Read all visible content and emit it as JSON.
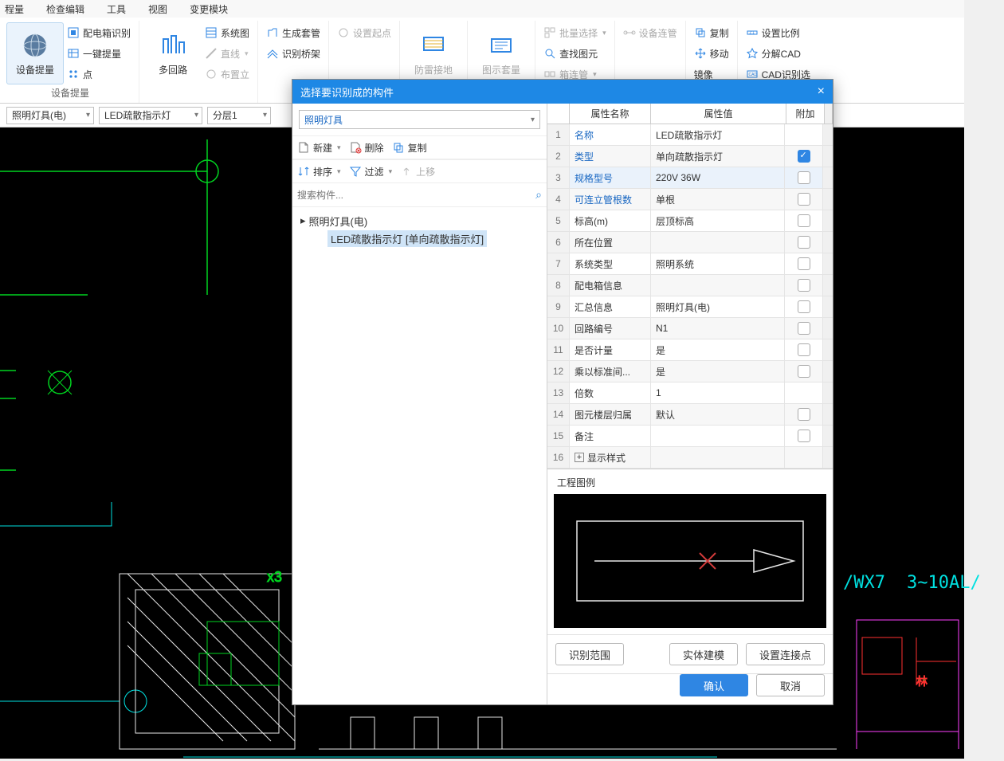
{
  "menu": [
    "程量",
    "检查编辑",
    "工具",
    "视图",
    "变更模块"
  ],
  "ribbon": {
    "group1": {
      "big": "设备提量",
      "items": [
        "配电箱识别",
        "一键提量",
        "点"
      ],
      "label": "设备提量"
    },
    "group2": {
      "big": "多回路",
      "items": [
        "系统图",
        "直线",
        "布置立"
      ],
      "label": ""
    },
    "group3": {
      "items_a": [
        "生成套管",
        "识别桥架"
      ],
      "item_dis": "设置起点"
    },
    "group4": {
      "big": "防雷接地"
    },
    "group5": {
      "big": "图示套量"
    },
    "group6": {
      "items": [
        {
          "t": "批量选择",
          "dis": true
        },
        {
          "t": "查找图元",
          "dis": false
        },
        {
          "t": "箱连管",
          "dis": true
        }
      ]
    },
    "group6b": {
      "item_dis": "设备连管"
    },
    "group7": {
      "items": [
        "复制",
        "移动",
        "镜像"
      ]
    },
    "group8": {
      "items": [
        "设置比例",
        "分解CAD",
        "CAD识别选"
      ]
    }
  },
  "toolbar_combos": [
    "照明灯具(电)",
    "LED疏散指示灯",
    "分层1"
  ],
  "dialog": {
    "title": "选择要识别成的构件",
    "close": "×",
    "left": {
      "type_combo": "照明灯具",
      "tools_row1": [
        {
          "label": "新建",
          "chev": true
        },
        {
          "label": "删除"
        },
        {
          "label": "复制"
        }
      ],
      "tools_row2": [
        {
          "label": "排序",
          "chev": true
        },
        {
          "label": "过滤",
          "chev": true
        },
        {
          "label": "上移",
          "dis": true
        }
      ],
      "search_placeholder": "搜索构件...",
      "tree": {
        "root": "照明灯具(电)",
        "child": "LED疏散指示灯  [单向疏散指示灯]"
      }
    },
    "right": {
      "head": {
        "name": "属性名称",
        "val": "属性值",
        "ext": "附加"
      },
      "rows": [
        {
          "n": "名称",
          "v": "LED疏散指示灯",
          "link": true,
          "chk": null
        },
        {
          "n": "类型",
          "v": "单向疏散指示灯",
          "link": true,
          "chk": true
        },
        {
          "n": "规格型号",
          "v": "220V 36W",
          "link": true,
          "chk": false,
          "sel": true
        },
        {
          "n": "可连立管根数",
          "v": "单根",
          "link": true,
          "chk": false
        },
        {
          "n": "标高(m)",
          "v": "层顶标高",
          "chk": false
        },
        {
          "n": "所在位置",
          "v": "",
          "chk": false
        },
        {
          "n": "系统类型",
          "v": "照明系统",
          "chk": false
        },
        {
          "n": "配电箱信息",
          "v": "",
          "chk": false
        },
        {
          "n": "汇总信息",
          "v": "照明灯具(电)",
          "chk": false
        },
        {
          "n": "回路编号",
          "v": "N1",
          "chk": false
        },
        {
          "n": "是否计量",
          "v": "是",
          "chk": false
        },
        {
          "n": "乘以标准间...",
          "v": "是",
          "chk": false
        },
        {
          "n": "倍数",
          "v": "1",
          "chk": null
        },
        {
          "n": "图元楼层归属",
          "v": "默认",
          "chk": false
        },
        {
          "n": "备注",
          "v": "",
          "chk": false
        },
        {
          "n": "显示样式",
          "v": "",
          "expander": true,
          "chk": null
        }
      ],
      "legend_title": "工程图例",
      "legend_colors": {
        "stroke": "#e8e8e8",
        "x": "#d23b3b"
      }
    },
    "btns": {
      "range": "识别范围",
      "model": "实体建模",
      "conn": "设置连接点",
      "ok": "确认",
      "cancel": "取消"
    }
  },
  "cad_colors": {
    "green": "#00d420",
    "cyan": "#00e0e0",
    "white": "#e8e8e8",
    "red": "#ff3030",
    "magenta": "#ff3fff"
  },
  "cad_text": {
    "x3": "x3",
    "wx7": "/WX7",
    "al": "3~10AL/"
  }
}
